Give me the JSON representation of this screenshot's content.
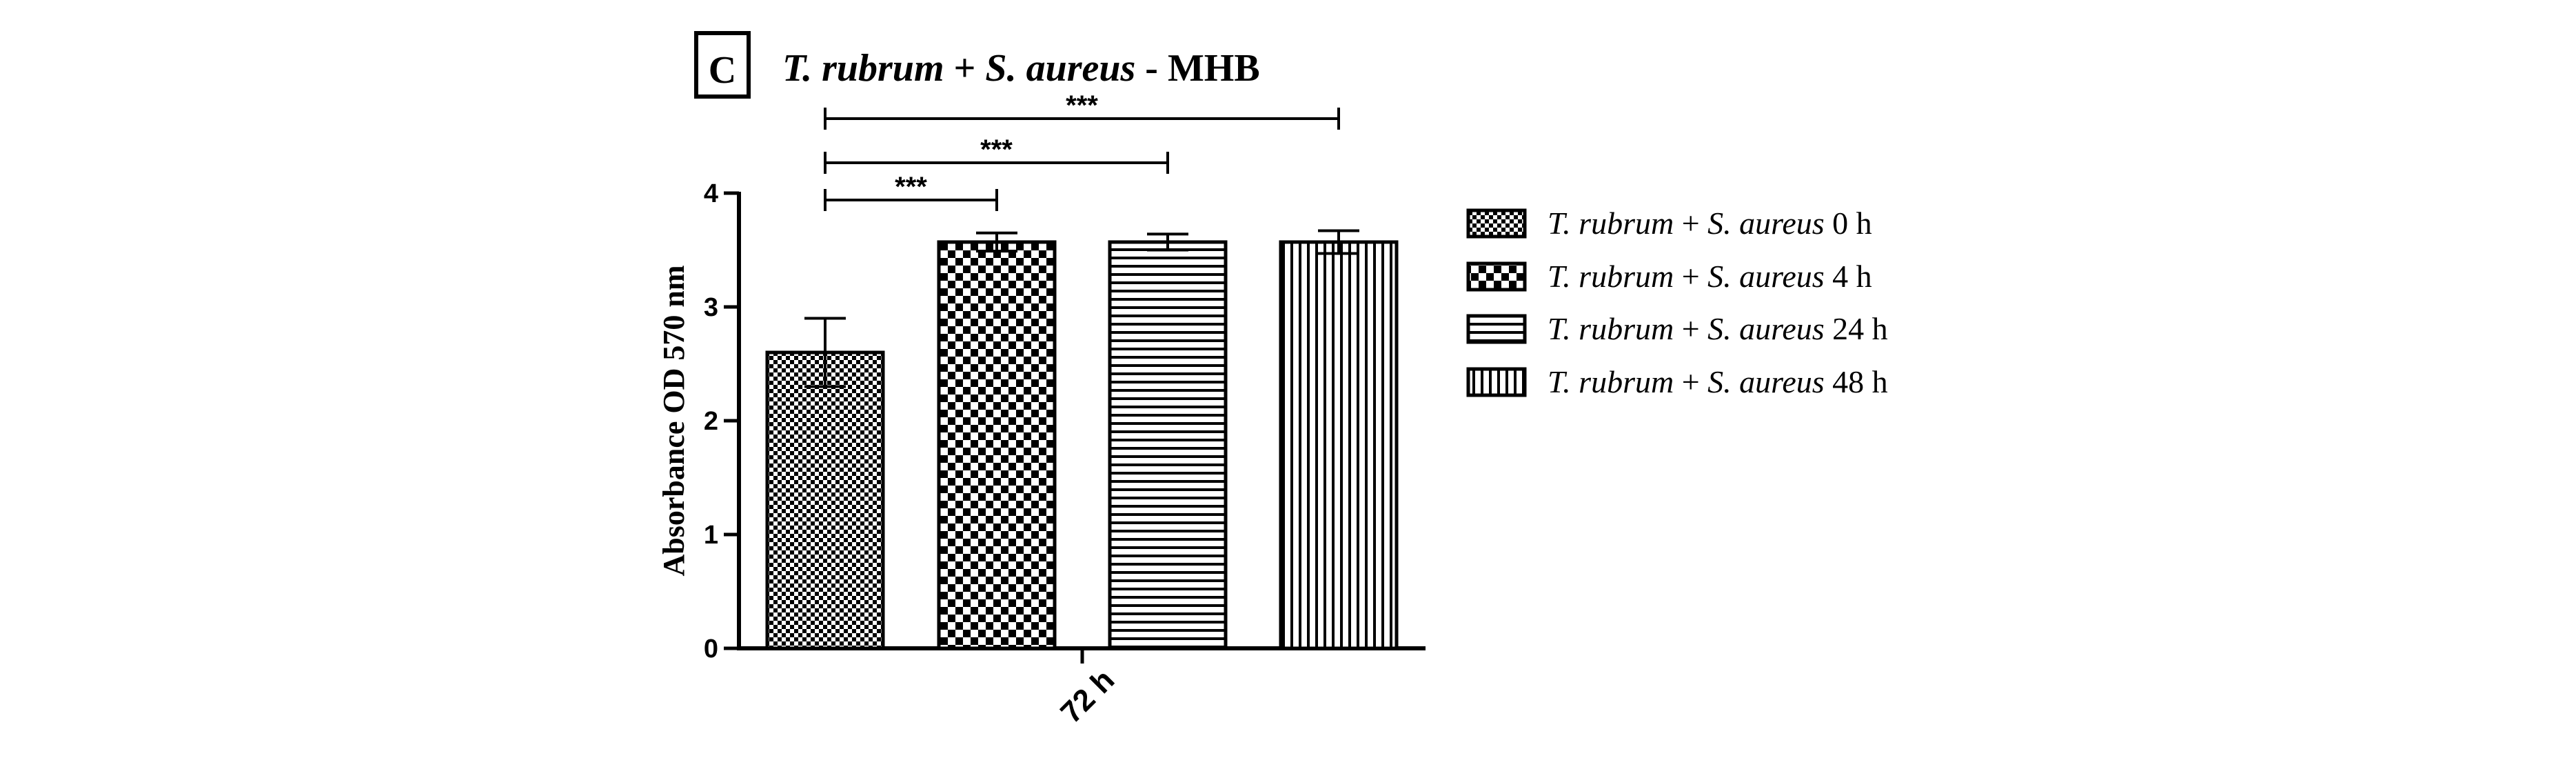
{
  "panel_label": "C",
  "chart_data": {
    "type": "bar",
    "title": "T. rubrum + S. aureus - MHB",
    "title_parts": {
      "italic_1": "T. rubrum",
      "plus": " + ",
      "italic_2": "S. aureus",
      "rest": " - MHB"
    },
    "ylabel": "Absorbance OD 570 nm",
    "xlabel": "",
    "categories": [
      "72 h"
    ],
    "ylim": [
      0,
      4
    ],
    "yticks": [
      "0",
      "1",
      "2",
      "3",
      "4"
    ],
    "series": [
      {
        "name": "T. rubrum + S. aureus 0 h",
        "value": 2.6,
        "error": 0.3,
        "pattern": "small-checker"
      },
      {
        "name": "T. rubrum + S. aureus 4 h",
        "value": 3.57,
        "error": 0.08,
        "pattern": "large-checker"
      },
      {
        "name": "T. rubrum + S. aureus 24 h",
        "value": 3.57,
        "error": 0.07,
        "pattern": "horizontal-lines"
      },
      {
        "name": "T. rubrum + S. aureus 48 h",
        "value": 3.57,
        "error": 0.1,
        "pattern": "vertical-lines"
      }
    ],
    "legend_position": "right",
    "legend": [
      {
        "italic_1": "T. rubrum",
        "plus": " + ",
        "italic_2": "S. aureus",
        "suffix": " 0 h"
      },
      {
        "italic_1": "T. rubrum",
        "plus": " + ",
        "italic_2": "S. aureus",
        "suffix": " 4 h"
      },
      {
        "italic_1": "T. rubrum",
        "plus": " + ",
        "italic_2": "S. aureus",
        "suffix": " 24 h"
      },
      {
        "italic_1": "T. rubrum",
        "plus": " + ",
        "italic_2": "S. aureus",
        "suffix": " 48 h"
      }
    ],
    "significance": [
      {
        "from": 0,
        "to": 1,
        "label": "***"
      },
      {
        "from": 0,
        "to": 2,
        "label": "***"
      },
      {
        "from": 0,
        "to": 3,
        "label": "***"
      }
    ],
    "grid": false
  }
}
